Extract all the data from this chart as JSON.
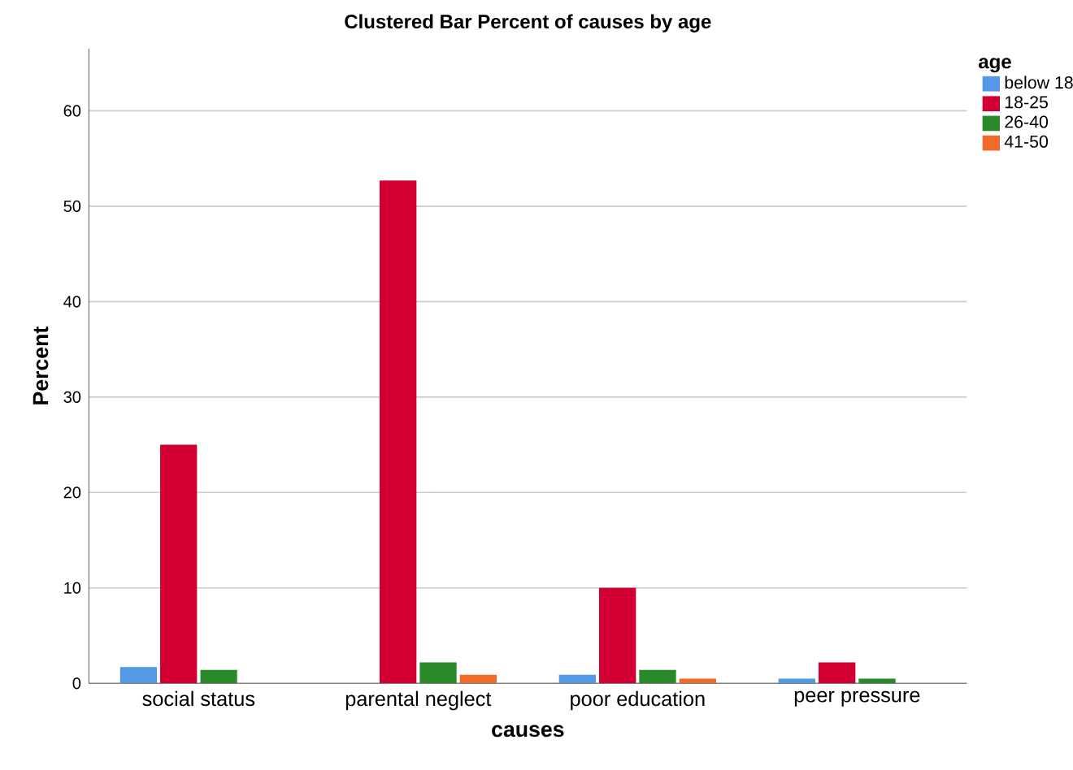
{
  "chart_data": {
    "type": "bar",
    "title": "Clustered Bar Percent of causes by age",
    "xlabel": "causes",
    "ylabel": "Percent",
    "legend_title": "age",
    "categories": [
      "social status",
      "parental neglect",
      "poor education",
      "peer pressure"
    ],
    "series": [
      {
        "name": "below 18",
        "color": "#5599e6",
        "values": [
          1.7,
          null,
          0.9,
          0.5
        ]
      },
      {
        "name": "18-25",
        "color": "#d20032",
        "values": [
          25.0,
          52.7,
          10.0,
          2.2
        ]
      },
      {
        "name": "26-40",
        "color": "#2a8a2a",
        "values": [
          1.4,
          2.2,
          1.4,
          0.5
        ]
      },
      {
        "name": "41-50",
        "color": "#f06a2a",
        "values": [
          null,
          0.9,
          0.5,
          null
        ]
      }
    ],
    "ylim": [
      0,
      66.5
    ],
    "yticks": [
      0,
      10,
      20,
      30,
      40,
      50,
      60
    ],
    "grid": "y",
    "legend": "top right"
  }
}
